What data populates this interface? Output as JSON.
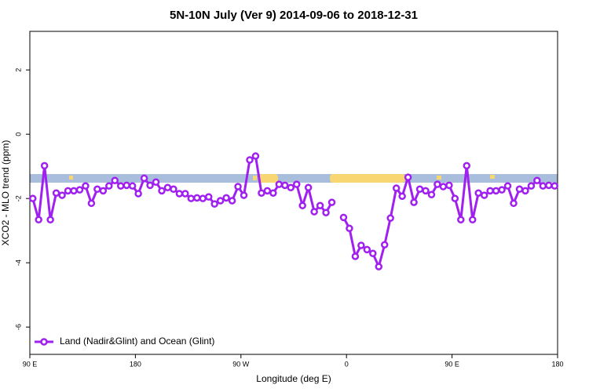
{
  "chart_data": {
    "type": "line",
    "title": "5N-10N July (Ver 9)   2014-09-06 to 2018-12-31",
    "x_label": "Longitude (deg E)",
    "y_label": "XCO2 - MLO trend (ppm)",
    "xlim": [
      90,
      540
    ],
    "ylim": [
      -6.85,
      3.2
    ],
    "xticks": [
      {
        "value": 90,
        "label": "90 E"
      },
      {
        "value": 180,
        "label": "180"
      },
      {
        "value": 270,
        "label": "90 W"
      },
      {
        "value": 360,
        "label": "0"
      },
      {
        "value": 450,
        "label": "90 E"
      },
      {
        "value": 540,
        "label": "180"
      }
    ],
    "yticks": [
      -6,
      -4,
      -2,
      0,
      2
    ],
    "legend": "bottomleft",
    "x": [
      92.5,
      97.5,
      102.5,
      107.5,
      112.5,
      117.5,
      122.5,
      127.5,
      132.5,
      137.5,
      142.5,
      147.5,
      152.5,
      157.5,
      162.5,
      167.5,
      172.5,
      177.5,
      182.5,
      187.5,
      192.5,
      197.5,
      202.5,
      207.5,
      212.5,
      217.5,
      222.5,
      227.5,
      232.5,
      237.5,
      242.5,
      247.5,
      252.5,
      257.5,
      262.5,
      267.5,
      272.5,
      277.5,
      282.5,
      287.5,
      292.5,
      297.5,
      302.5,
      307.5,
      312.5,
      317.5,
      322.5,
      327.5,
      332.5,
      337.5,
      342.5,
      347.5,
      352.5,
      357.5,
      362.5,
      367.5,
      372.5,
      377.5,
      382.5,
      387.5,
      392.5,
      397.5,
      402.5,
      407.5,
      412.5,
      417.5,
      422.5,
      427.5,
      432.5,
      437.5,
      442.5,
      447.5,
      452.5,
      457.5,
      462.5,
      467.5,
      472.5,
      477.5,
      482.5,
      487.5,
      492.5,
      497.5,
      502.5,
      507.5,
      512.5,
      517.5,
      522.5,
      527.5,
      532.5,
      537.5
    ],
    "series": [
      {
        "name": "Land (Nadir&Glint) and Ocean (Glint)",
        "color": "#a020f0",
        "values": [
          -2.0,
          -2.66,
          -0.98,
          -2.66,
          -1.83,
          -1.9,
          -1.76,
          -1.76,
          -1.73,
          -1.61,
          -2.15,
          -1.71,
          -1.76,
          -1.61,
          -1.44,
          -1.61,
          -1.59,
          -1.61,
          -1.85,
          -1.37,
          -1.59,
          -1.49,
          -1.76,
          -1.66,
          -1.71,
          -1.85,
          -1.85,
          -2.0,
          -1.98,
          -2.0,
          -1.95,
          -2.17,
          -2.07,
          -1.98,
          -2.07,
          -1.63,
          -1.9,
          -0.8,
          -0.68,
          -1.83,
          -1.76,
          -1.83,
          -1.56,
          -1.59,
          -1.66,
          -1.56,
          -2.22,
          -1.66,
          -2.41,
          -2.22,
          -2.44,
          -2.12,
          null,
          -2.59,
          -2.93,
          -3.8,
          -3.46,
          -3.59,
          -3.71,
          -4.12,
          -3.44,
          -2.61,
          -1.68,
          -1.93,
          -1.34,
          -2.12,
          -1.71,
          -1.76,
          -1.88,
          -1.56,
          -1.63,
          -1.59,
          -2.0,
          -2.66,
          -0.98,
          -2.66,
          -1.83,
          -1.9,
          -1.76,
          -1.76,
          -1.73,
          -1.61,
          -2.15,
          -1.71,
          -1.76,
          -1.61,
          -1.44,
          -1.61,
          -1.59,
          -1.61
        ]
      }
    ]
  }
}
